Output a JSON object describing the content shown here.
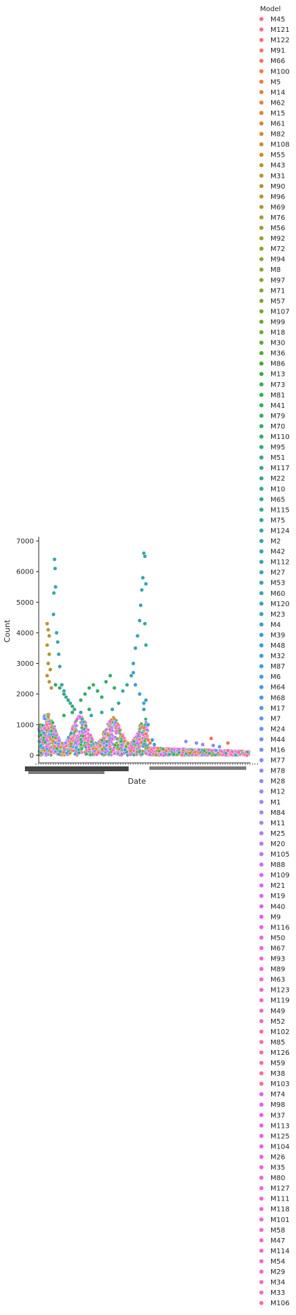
{
  "chart_data": {
    "type": "scatter",
    "xlabel": "Date",
    "ylabel": "Count",
    "ylim": [
      -250,
      7000
    ],
    "yticks": [
      0,
      1000,
      2000,
      3000,
      4000,
      5000,
      6000,
      7000
    ],
    "x_tick_labels_note": "",
    "grid": false,
    "legend": {
      "title": "Model",
      "placement": "outside-right",
      "entries": [
        {
          "name": "M45",
          "color": "#f77189"
        },
        {
          "name": "M121",
          "color": "#f7718a"
        },
        {
          "name": "M122",
          "color": "#f7727c"
        },
        {
          "name": "M91",
          "color": "#f6736f"
        },
        {
          "name": "M66",
          "color": "#f6745f"
        },
        {
          "name": "M100",
          "color": "#f6764b"
        },
        {
          "name": "M5",
          "color": "#f27a32"
        },
        {
          "name": "M14",
          "color": "#ea7e32"
        },
        {
          "name": "M62",
          "color": "#e38132"
        },
        {
          "name": "M15",
          "color": "#dd8432"
        },
        {
          "name": "M61",
          "color": "#d78732"
        },
        {
          "name": "M82",
          "color": "#d18a32"
        },
        {
          "name": "M108",
          "color": "#cc8c32"
        },
        {
          "name": "M55",
          "color": "#c68e32"
        },
        {
          "name": "M43",
          "color": "#c19032"
        },
        {
          "name": "M31",
          "color": "#bc9232"
        },
        {
          "name": "M90",
          "color": "#b79432"
        },
        {
          "name": "M96",
          "color": "#b29632"
        },
        {
          "name": "M69",
          "color": "#ad9832"
        },
        {
          "name": "M76",
          "color": "#a89a32"
        },
        {
          "name": "M56",
          "color": "#a39b32"
        },
        {
          "name": "M92",
          "color": "#9f9d32"
        },
        {
          "name": "M72",
          "color": "#9a9e32"
        },
        {
          "name": "M94",
          "color": "#95a032"
        },
        {
          "name": "M8",
          "color": "#90a132"
        },
        {
          "name": "M97",
          "color": "#8ba232"
        },
        {
          "name": "M71",
          "color": "#85a432"
        },
        {
          "name": "M57",
          "color": "#7fa532"
        },
        {
          "name": "M107",
          "color": "#78a632"
        },
        {
          "name": "M99",
          "color": "#71a832"
        },
        {
          "name": "M18",
          "color": "#68a932"
        },
        {
          "name": "M30",
          "color": "#5eaa32"
        },
        {
          "name": "M36",
          "color": "#50ac32"
        },
        {
          "name": "M86",
          "color": "#3cad32"
        },
        {
          "name": "M13",
          "color": "#33ae3d"
        },
        {
          "name": "M73",
          "color": "#33ae4a"
        },
        {
          "name": "M81",
          "color": "#34ad55"
        },
        {
          "name": "M41",
          "color": "#34ad5f"
        },
        {
          "name": "M79",
          "color": "#35ac67"
        },
        {
          "name": "M70",
          "color": "#35ac6e"
        },
        {
          "name": "M110",
          "color": "#35ab74"
        },
        {
          "name": "M95",
          "color": "#35ab7a"
        },
        {
          "name": "M51",
          "color": "#36aa80"
        },
        {
          "name": "M117",
          "color": "#36aa85"
        },
        {
          "name": "M22",
          "color": "#36a98a"
        },
        {
          "name": "M10",
          "color": "#36a98e"
        },
        {
          "name": "M65",
          "color": "#37a893"
        },
        {
          "name": "M115",
          "color": "#37a897"
        },
        {
          "name": "M75",
          "color": "#37a79b"
        },
        {
          "name": "M124",
          "color": "#37a79f"
        },
        {
          "name": "M2",
          "color": "#38a6a3"
        },
        {
          "name": "M42",
          "color": "#38a6a7"
        },
        {
          "name": "M112",
          "color": "#38a5ab"
        },
        {
          "name": "M27",
          "color": "#38a5af"
        },
        {
          "name": "M53",
          "color": "#39a4b3"
        },
        {
          "name": "M60",
          "color": "#39a4b7"
        },
        {
          "name": "M120",
          "color": "#39a3bb"
        },
        {
          "name": "M23",
          "color": "#3aa3bf"
        },
        {
          "name": "M4",
          "color": "#3aa2c4"
        },
        {
          "name": "M39",
          "color": "#3ba1c9"
        },
        {
          "name": "M48",
          "color": "#3ba0ce"
        },
        {
          "name": "M32",
          "color": "#3c9fd3"
        },
        {
          "name": "M87",
          "color": "#3d9ed9"
        },
        {
          "name": "M6",
          "color": "#3f9ddf"
        },
        {
          "name": "M64",
          "color": "#419be6"
        },
        {
          "name": "M68",
          "color": "#4499ee"
        },
        {
          "name": "M17",
          "color": "#5297f4"
        },
        {
          "name": "M7",
          "color": "#5e95f4"
        },
        {
          "name": "M24",
          "color": "#6993f4"
        },
        {
          "name": "M44",
          "color": "#7291f4"
        },
        {
          "name": "M16",
          "color": "#7a8ff4"
        },
        {
          "name": "M77",
          "color": "#828df4"
        },
        {
          "name": "M78",
          "color": "#898bf4"
        },
        {
          "name": "M28",
          "color": "#9089f4"
        },
        {
          "name": "M12",
          "color": "#9787f4"
        },
        {
          "name": "M1",
          "color": "#9e84f4"
        },
        {
          "name": "M84",
          "color": "#a482f4"
        },
        {
          "name": "M11",
          "color": "#ab7ff4"
        },
        {
          "name": "M25",
          "color": "#b17cf4"
        },
        {
          "name": "M20",
          "color": "#b879f4"
        },
        {
          "name": "M105",
          "color": "#be76f4"
        },
        {
          "name": "M88",
          "color": "#c572f4"
        },
        {
          "name": "M109",
          "color": "#cc6ef4"
        },
        {
          "name": "M21",
          "color": "#d36af4"
        },
        {
          "name": "M19",
          "color": "#da65f4"
        },
        {
          "name": "M40",
          "color": "#e15ff4"
        },
        {
          "name": "M9",
          "color": "#e95af0"
        },
        {
          "name": "M116",
          "color": "#ee5ee9"
        },
        {
          "name": "M50",
          "color": "#f061e2"
        },
        {
          "name": "M67",
          "color": "#f163dc"
        },
        {
          "name": "M93",
          "color": "#f265d6"
        },
        {
          "name": "M89",
          "color": "#f266d0"
        },
        {
          "name": "M63",
          "color": "#f367ca"
        },
        {
          "name": "M123",
          "color": "#f368c4"
        },
        {
          "name": "M119",
          "color": "#f469be"
        },
        {
          "name": "M49",
          "color": "#f46ab8"
        },
        {
          "name": "M52",
          "color": "#f46bb2"
        },
        {
          "name": "M102",
          "color": "#f56cac"
        },
        {
          "name": "M85",
          "color": "#f56da6"
        },
        {
          "name": "M126",
          "color": "#f56ea0"
        },
        {
          "name": "M59",
          "color": "#f56f99"
        },
        {
          "name": "M38",
          "color": "#f66f93"
        },
        {
          "name": "M103",
          "color": "#f6708c"
        },
        {
          "name": "M74",
          "color": "#e15ff4"
        },
        {
          "name": "M98",
          "color": "#e45df2"
        },
        {
          "name": "M37",
          "color": "#e85bef"
        },
        {
          "name": "M113",
          "color": "#eb5aec"
        },
        {
          "name": "M125",
          "color": "#ed5ce9"
        },
        {
          "name": "M104",
          "color": "#ee5de6"
        },
        {
          "name": "M26",
          "color": "#ef5fe3"
        },
        {
          "name": "M35",
          "color": "#f060e0"
        },
        {
          "name": "M80",
          "color": "#f061dd"
        },
        {
          "name": "M127",
          "color": "#f162da"
        },
        {
          "name": "M111",
          "color": "#f163d7"
        },
        {
          "name": "M118",
          "color": "#f264d4"
        },
        {
          "name": "M101",
          "color": "#f265d1"
        },
        {
          "name": "M58",
          "color": "#f366ce"
        },
        {
          "name": "M47",
          "color": "#f367ca"
        },
        {
          "name": "M114",
          "color": "#f368c6"
        },
        {
          "name": "M54",
          "color": "#f469c2"
        },
        {
          "name": "M29",
          "color": "#f46abd"
        },
        {
          "name": "M34",
          "color": "#f46bb8"
        },
        {
          "name": "M33",
          "color": "#f56cb2"
        },
        {
          "name": "M106",
          "color": "#f56dab"
        }
      ]
    },
    "highlight_series": [
      {
        "name": "M24",
        "color": "#38a6a7",
        "points": [
          [
            0.075,
            6400
          ],
          [
            0.078,
            6100
          ],
          [
            0.072,
            5300
          ],
          [
            0.08,
            5500
          ],
          [
            0.07,
            4600
          ],
          [
            0.085,
            4000
          ],
          [
            0.09,
            3700
          ],
          [
            0.095,
            3300
          ],
          [
            0.1,
            2900
          ],
          [
            0.11,
            2300
          ],
          [
            0.12,
            2100
          ],
          [
            0.13,
            1900
          ],
          [
            0.15,
            1700
          ],
          [
            0.17,
            1500
          ],
          [
            0.2,
            1400
          ],
          [
            0.25,
            1300
          ],
          [
            0.3,
            1400
          ],
          [
            0.35,
            1500
          ],
          [
            0.38,
            1700
          ],
          [
            0.4,
            2100
          ],
          [
            0.42,
            2300
          ],
          [
            0.44,
            2600
          ],
          [
            0.45,
            3000
          ],
          [
            0.46,
            3500
          ],
          [
            0.47,
            3900
          ],
          [
            0.48,
            4400
          ],
          [
            0.485,
            4900
          ],
          [
            0.49,
            5400
          ],
          [
            0.495,
            5800
          ],
          [
            0.5,
            6600
          ],
          [
            0.505,
            6500
          ],
          [
            0.51,
            5600
          ],
          [
            0.505,
            4300
          ],
          [
            0.51,
            3600
          ],
          [
            0.51,
            1800
          ],
          [
            0.5,
            1500
          ]
        ]
      },
      {
        "name": "M76",
        "color": "#b79432",
        "points": [
          [
            0.04,
            4300
          ],
          [
            0.045,
            4100
          ],
          [
            0.05,
            3900
          ],
          [
            0.04,
            3600
          ],
          [
            0.05,
            3300
          ],
          [
            0.045,
            3000
          ],
          [
            0.055,
            2800
          ],
          [
            0.04,
            2600
          ],
          [
            0.05,
            2400
          ],
          [
            0.06,
            2200
          ]
        ]
      },
      {
        "name": "M70",
        "color": "#35ac67",
        "points": [
          [
            0.08,
            2300
          ],
          [
            0.1,
            2200
          ],
          [
            0.12,
            2000
          ],
          [
            0.14,
            1800
          ],
          [
            0.16,
            1600
          ],
          [
            0.2,
            1800
          ],
          [
            0.22,
            2000
          ],
          [
            0.24,
            2200
          ],
          [
            0.26,
            2300
          ],
          [
            0.28,
            2100
          ],
          [
            0.3,
            1900
          ],
          [
            0.32,
            2400
          ],
          [
            0.34,
            2600
          ],
          [
            0.36,
            2200
          ],
          [
            0.12,
            1300
          ],
          [
            0.16,
            1400
          ],
          [
            0.24,
            1500
          ]
        ]
      },
      {
        "name": "M68",
        "color": "#3f9ddf",
        "points": [
          [
            0.45,
            2700
          ],
          [
            0.46,
            2300
          ],
          [
            0.48,
            2000
          ],
          [
            0.5,
            1700
          ],
          [
            0.52,
            1000
          ],
          [
            0.54,
            500
          ],
          [
            0.55,
            350
          ]
        ]
      },
      {
        "name": "M100",
        "color": "#f6764b",
        "points": [
          [
            0.5,
            900
          ],
          [
            0.51,
            700
          ],
          [
            0.52,
            500
          ],
          [
            0.53,
            400
          ],
          [
            0.82,
            550
          ],
          [
            0.9,
            400
          ]
        ]
      },
      {
        "name": "M78",
        "color": "#898bf4",
        "points": [
          [
            0.7,
            450
          ],
          [
            0.75,
            400
          ],
          [
            0.78,
            350
          ],
          [
            0.83,
            320
          ],
          [
            0.86,
            280
          ]
        ]
      },
      {
        "name": "M106",
        "color": "#f56dab",
        "points": [
          [
            0.9,
            150
          ],
          [
            0.92,
            120
          ],
          [
            0.95,
            100
          ],
          [
            0.98,
            30
          ],
          [
            0.99,
            0
          ]
        ]
      }
    ],
    "background_band": {
      "x_range": [
        0.0,
        1.0
      ],
      "note": "dense overlapping cloud of points between 0 and ~1500 for all models"
    }
  }
}
